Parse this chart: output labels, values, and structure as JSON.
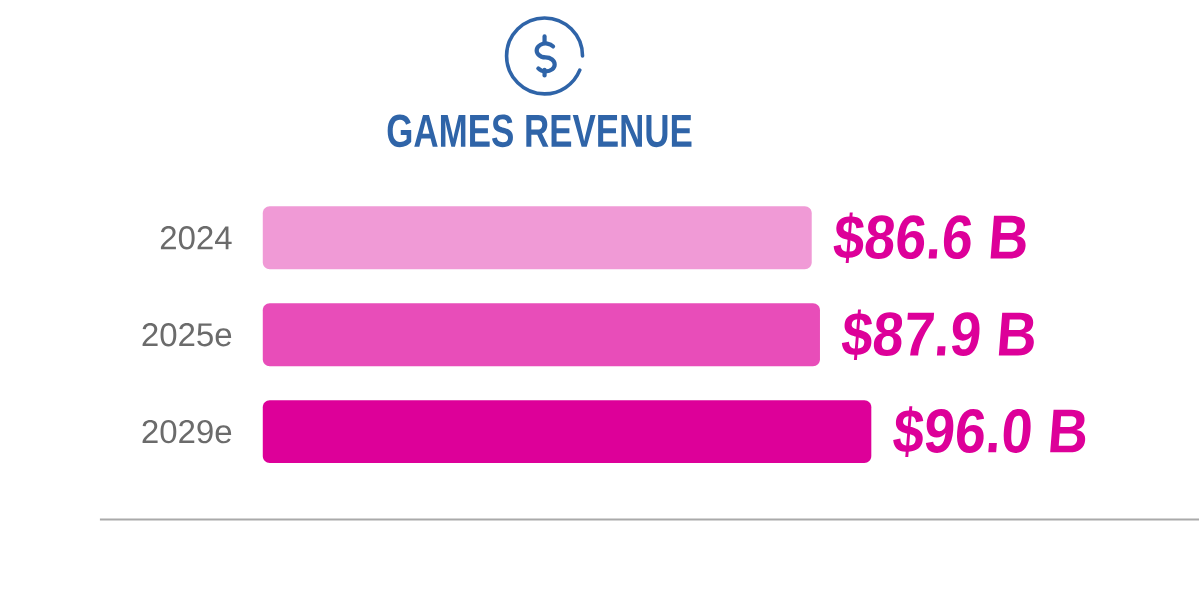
{
  "chart_data": {
    "type": "bar",
    "orientation": "horizontal",
    "title": "GAMES REVENUE",
    "categories": [
      "2024",
      "2025e",
      "2029e"
    ],
    "values": [
      86.6,
      87.9,
      96.0
    ],
    "colors": [
      "#f09ad6",
      "#e84db9",
      "#dd0099"
    ],
    "value_labels": [
      "$86.6 B",
      "$87.9 B",
      "$96.0 B"
    ],
    "tick_labels": "y"
  }
}
